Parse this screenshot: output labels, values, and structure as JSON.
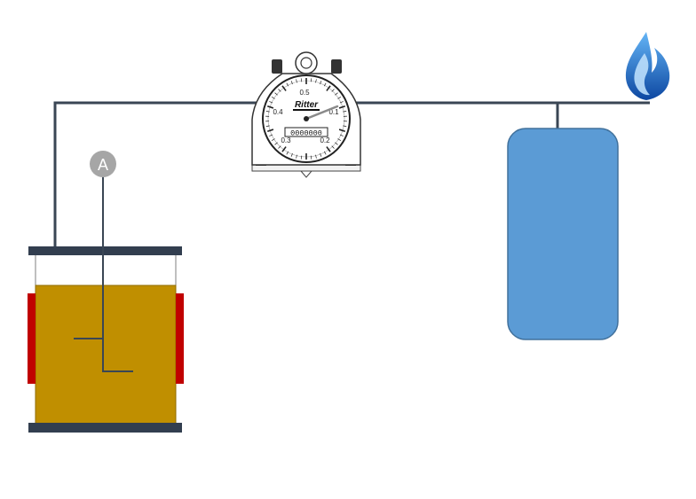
{
  "diagram": {
    "agitator": {
      "label": "A"
    },
    "gas_meter": {
      "brand": "Ritter",
      "counter": "0000000",
      "dial_labels": [
        "0.5",
        "0.4",
        "0.1",
        "0.3",
        "0.2"
      ]
    },
    "colors": {
      "pipe": "#3a4654",
      "lid": "#323e4f",
      "liquid": "#c08f00",
      "heater": "#c00000",
      "storage_tank": "#5b9bd5",
      "storage_tank_border": "#41719c",
      "flame": "#1e88e5",
      "agitator_circle": "#a6a6a6"
    },
    "icons": {
      "flame": "flame-icon",
      "meter": "gas-meter-icon"
    }
  }
}
